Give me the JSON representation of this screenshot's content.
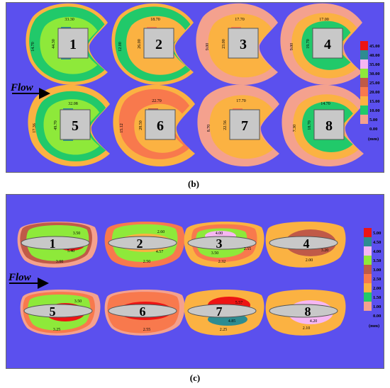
{
  "captions": {
    "b": "(b)",
    "c": "(c)"
  },
  "colors": {
    "background": "#5b50ee",
    "level_0_5": "#f4a18e",
    "level_5_10": "#fbb242",
    "level_10_15": "#21c96a",
    "level_15_20": "#fbb242",
    "level_20_25": "#f8794d",
    "level_25_30": "#c05a48",
    "level_30_35": "#8ee93a",
    "level_35_40": "#f6b7f2",
    "level_40_45": "#2e8c91",
    "level_45": "#ed1414",
    "pier": "#c8c8c8"
  },
  "panel_b": {
    "flow_label": "Flow",
    "legend_ticks": [
      "45.00",
      "40.00",
      "35.00",
      "30.00",
      "25.00",
      "20.00",
      "15.00",
      "10.00",
      "5.00",
      "0.00"
    ],
    "legend_unit": "(mm)",
    "piers": [
      {
        "number": "1",
        "top": "33.30",
        "left": "14.70",
        "inner": "44.30"
      },
      {
        "number": "2",
        "top": "18.70",
        "left": "12.00",
        "inner": "26.00"
      },
      {
        "number": "3",
        "top": "17.70",
        "left": "9.00",
        "inner": "23.00"
      },
      {
        "number": "4",
        "top": "17.00",
        "left": "9.00",
        "inner": "19.70"
      },
      {
        "number": "5",
        "top": "32.08",
        "left": "17.36",
        "inner": "49.70"
      },
      {
        "number": "6",
        "top": "22.70",
        "left": "15.12",
        "inner": "28.50"
      },
      {
        "number": "7",
        "top": "17.70",
        "left": "8.70",
        "inner": "22.56"
      },
      {
        "number": "8",
        "top": "14.70",
        "left": "7.30",
        "inner": "18.70"
      }
    ]
  },
  "panel_c": {
    "flow_label": "Flow",
    "legend_ticks": [
      "5.00",
      "4.50",
      "4.00",
      "3.50",
      "3.00",
      "2.50",
      "2.00",
      "1.50",
      "1.00",
      "0.00"
    ],
    "legend_unit": "(mm)",
    "piers": [
      {
        "number": "1",
        "labels": [
          "3.50",
          "5.40",
          "3.00"
        ]
      },
      {
        "number": "2",
        "labels": [
          "2.60",
          "4.57",
          "2.50"
        ]
      },
      {
        "number": "3",
        "labels": [
          "4.00",
          "3.50",
          "2.55",
          "2.32"
        ]
      },
      {
        "number": "4",
        "labels": [
          "3.20",
          "2.00"
        ]
      },
      {
        "number": "5",
        "labels": [
          "3.50",
          "3.25"
        ]
      },
      {
        "number": "6",
        "labels": [
          "2.55"
        ]
      },
      {
        "number": "7",
        "labels": [
          "5.57",
          "4.85",
          "2.25"
        ]
      },
      {
        "number": "8",
        "labels": [
          "4.20",
          "2.10"
        ]
      }
    ]
  }
}
